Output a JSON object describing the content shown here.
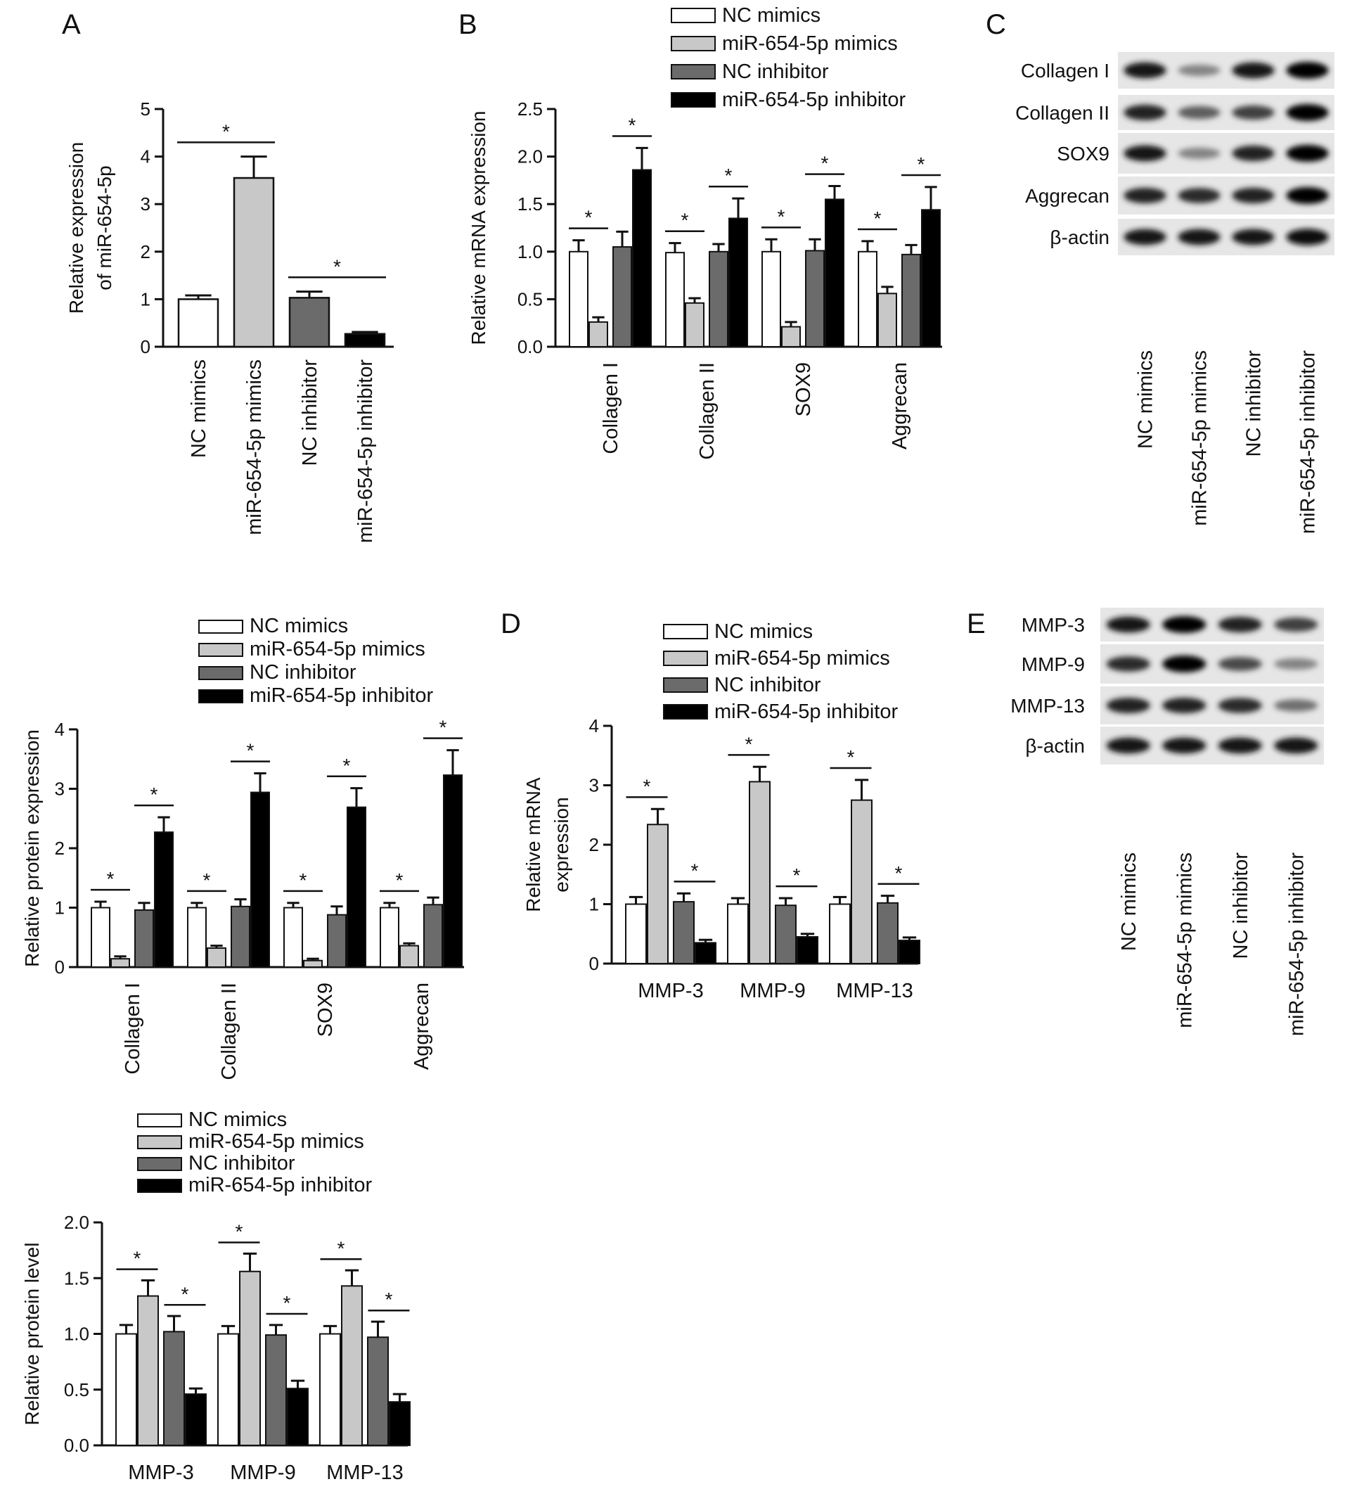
{
  "panel_letters": [
    "A",
    "B",
    "C",
    "D",
    "E"
  ],
  "legend_labels": [
    "NC mimics",
    "miR-654-5p mimics",
    "NC inhibitor",
    "miR-654-5p inhibitor"
  ],
  "colors": {
    "NC mimics": "#ffffff",
    "miR-654-5p mimics": "#c8c8c8",
    "NC inhibitor": "#6b6b6b",
    "miR-654-5p inhibitor": "#000000"
  },
  "chart_data": [
    {
      "id": "A",
      "type": "bar",
      "ylabel": [
        "Relative expression",
        "of miR-654-5p"
      ],
      "ylim": [
        0,
        5
      ],
      "yticks": [
        "0",
        "1",
        "2",
        "3",
        "4",
        "5"
      ],
      "categories": [
        "NC mimics",
        "miR-654-5p mimics",
        "NC inhibitor",
        "miR-654-5p inhibitor"
      ],
      "values": [
        1.0,
        3.55,
        1.03,
        0.27
      ],
      "errors": [
        0.08,
        0.45,
        0.13,
        0.04
      ],
      "significance": [
        "*",
        "*"
      ]
    },
    {
      "id": "B",
      "type": "bar",
      "ylabel": [
        "Relative mRNA expression"
      ],
      "ylim": [
        0,
        2.5
      ],
      "yticks": [
        "0.0",
        "0.5",
        "1.0",
        "1.5",
        "2.0",
        "2.5"
      ],
      "categories": [
        "Collagen I",
        "Collagen II",
        "SOX9",
        "Aggrecan"
      ],
      "series": [
        {
          "name": "NC mimics",
          "values": [
            1.0,
            0.99,
            1.0,
            1.0
          ],
          "errors": [
            0.12,
            0.1,
            0.13,
            0.11
          ]
        },
        {
          "name": "miR-654-5p mimics",
          "values": [
            0.26,
            0.46,
            0.21,
            0.56
          ],
          "errors": [
            0.05,
            0.05,
            0.05,
            0.07
          ]
        },
        {
          "name": "NC inhibitor",
          "values": [
            1.05,
            1.0,
            1.01,
            0.97
          ],
          "errors": [
            0.16,
            0.08,
            0.12,
            0.1
          ]
        },
        {
          "name": "miR-654-5p inhibitor",
          "values": [
            1.86,
            1.35,
            1.55,
            1.44
          ],
          "errors": [
            0.23,
            0.21,
            0.14,
            0.24
          ]
        }
      ],
      "significance": [
        "*",
        "*",
        "*",
        "*",
        "*",
        "*",
        "*",
        "*"
      ]
    },
    {
      "id": "protein-ecm",
      "type": "bar",
      "ylabel": [
        "Relative protein expression"
      ],
      "ylim": [
        0,
        4
      ],
      "yticks": [
        "0",
        "1",
        "2",
        "3",
        "4"
      ],
      "categories": [
        "Collagen I",
        "Collagen II",
        "SOX9",
        "Aggrecan"
      ],
      "series": [
        {
          "name": "NC mimics",
          "values": [
            1.0,
            1.0,
            1.0,
            1.0
          ],
          "errors": [
            0.1,
            0.08,
            0.08,
            0.08
          ]
        },
        {
          "name": "miR-654-5p mimics",
          "values": [
            0.14,
            0.32,
            0.11,
            0.36
          ],
          "errors": [
            0.04,
            0.04,
            0.03,
            0.04
          ]
        },
        {
          "name": "NC inhibitor",
          "values": [
            0.96,
            1.02,
            0.88,
            1.05
          ],
          "errors": [
            0.12,
            0.12,
            0.14,
            0.12
          ]
        },
        {
          "name": "miR-654-5p inhibitor",
          "values": [
            2.27,
            2.94,
            2.69,
            3.23
          ],
          "errors": [
            0.25,
            0.32,
            0.32,
            0.42
          ]
        }
      ],
      "significance": [
        "*",
        "*",
        "*",
        "*",
        "*",
        "*",
        "*",
        "*"
      ]
    },
    {
      "id": "D",
      "type": "bar",
      "ylabel": [
        "Relative mRNA",
        "expression"
      ],
      "ylim": [
        0,
        4
      ],
      "yticks": [
        "0",
        "1",
        "2",
        "3",
        "4"
      ],
      "categories": [
        "MMP-3",
        "MMP-9",
        "MMP-13"
      ],
      "series": [
        {
          "name": "NC mimics",
          "values": [
            1.0,
            1.0,
            1.0
          ],
          "errors": [
            0.12,
            0.1,
            0.12
          ]
        },
        {
          "name": "miR-654-5p mimics",
          "values": [
            2.34,
            3.06,
            2.75
          ],
          "errors": [
            0.26,
            0.25,
            0.34
          ]
        },
        {
          "name": "NC inhibitor",
          "values": [
            1.04,
            0.98,
            1.02
          ],
          "errors": [
            0.14,
            0.12,
            0.12
          ]
        },
        {
          "name": "miR-654-5p inhibitor",
          "values": [
            0.35,
            0.45,
            0.39
          ],
          "errors": [
            0.05,
            0.05,
            0.05
          ]
        }
      ],
      "significance": [
        "*",
        "*",
        "*",
        "*",
        "*",
        "*"
      ]
    },
    {
      "id": "protein-mmp",
      "type": "bar",
      "ylabel": [
        "Relative protein level"
      ],
      "ylim": [
        0,
        2
      ],
      "yticks": [
        "0.0",
        "0.5",
        "1.0",
        "1.5",
        "2.0"
      ],
      "categories": [
        "MMP-3",
        "MMP-9",
        "MMP-13"
      ],
      "series": [
        {
          "name": "NC mimics",
          "values": [
            1.0,
            1.0,
            1.0
          ],
          "errors": [
            0.08,
            0.07,
            0.07
          ]
        },
        {
          "name": "miR-654-5p mimics",
          "values": [
            1.34,
            1.56,
            1.43
          ],
          "errors": [
            0.14,
            0.16,
            0.14
          ]
        },
        {
          "name": "NC inhibitor",
          "values": [
            1.02,
            0.99,
            0.97
          ],
          "errors": [
            0.14,
            0.09,
            0.14
          ]
        },
        {
          "name": "miR-654-5p inhibitor",
          "values": [
            0.46,
            0.51,
            0.39
          ],
          "errors": [
            0.05,
            0.07,
            0.07
          ]
        }
      ],
      "significance": [
        "*",
        "*",
        "*",
        "*",
        "*",
        "*"
      ]
    }
  ],
  "blots": [
    {
      "id": "C",
      "rows": [
        "Collagen I",
        "Collagen II",
        "SOX9",
        "Aggrecan",
        "β-actin"
      ],
      "lanes": [
        "NC mimics",
        "miR-654-5p mimics",
        "NC inhibitor",
        "miR-654-5p inhibitor"
      ],
      "intensity": [
        [
          0.9,
          0.35,
          0.9,
          1.0
        ],
        [
          0.85,
          0.55,
          0.7,
          1.0
        ],
        [
          0.9,
          0.35,
          0.85,
          1.0
        ],
        [
          0.85,
          0.8,
          0.85,
          1.0
        ],
        [
          0.9,
          0.9,
          0.9,
          0.95
        ]
      ]
    },
    {
      "id": "E",
      "rows": [
        "MMP-3",
        "MMP-9",
        "MMP-13",
        "β-actin"
      ],
      "lanes": [
        "NC mimics",
        "miR-654-5p mimics",
        "NC inhibitor",
        "miR-654-5p inhibitor"
      ],
      "intensity": [
        [
          0.9,
          1.0,
          0.85,
          0.7
        ],
        [
          0.8,
          1.0,
          0.65,
          0.35
        ],
        [
          0.85,
          0.85,
          0.8,
          0.45
        ],
        [
          0.9,
          0.9,
          0.9,
          0.9
        ]
      ]
    }
  ]
}
